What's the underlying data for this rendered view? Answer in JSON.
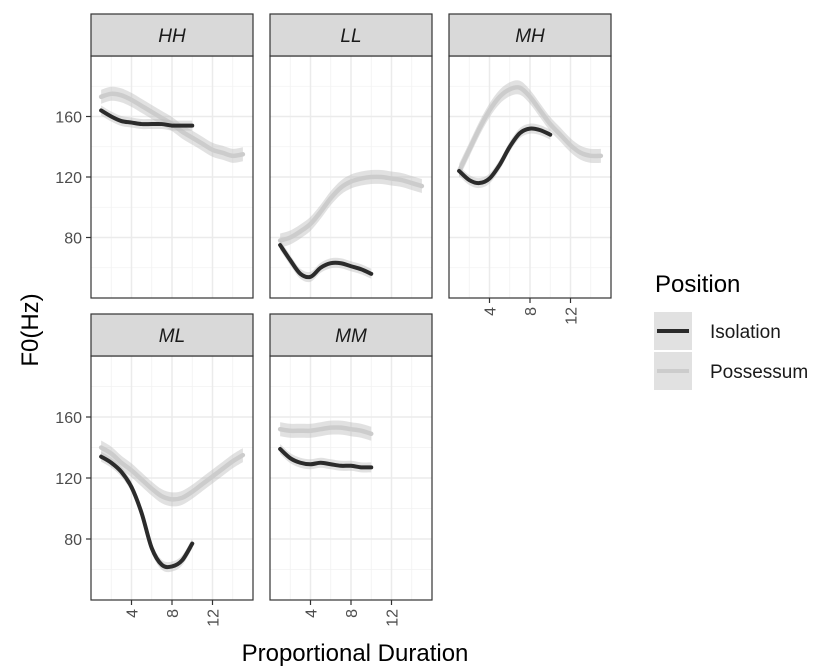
{
  "chart_data": {
    "type": "line",
    "xlabel": "Proportional Duration",
    "ylabel": "F0(Hz)",
    "xlim": [
      0,
      16
    ],
    "ylim": [
      40,
      200
    ],
    "x_ticks": [
      4,
      8,
      12
    ],
    "y_ticks": [
      80,
      120,
      160
    ],
    "grid": true,
    "legend": {
      "title": "Position",
      "placement": "right",
      "entries": [
        {
          "label": "Isolation",
          "color": "#2b2b2b"
        },
        {
          "label": "Possessum",
          "color": "#cccccc"
        }
      ]
    },
    "colors": {
      "Isolation": "#2b2b2b",
      "Possessum": "#cccccc",
      "ribbon": "#bdbdbd",
      "strip": "#d9d9d9"
    },
    "panels": [
      {
        "title": "HH",
        "series": [
          {
            "name": "Isolation",
            "x": [
              1,
              2,
              3,
              4,
              5,
              6,
              7,
              8,
              9,
              10
            ],
            "y": [
              164,
              160,
              157,
              156,
              155,
              155,
              155,
              154,
              154,
              154
            ]
          },
          {
            "name": "Possessum",
            "x": [
              1,
              2,
              3,
              4,
              5,
              6,
              7,
              8,
              9,
              10,
              11,
              12,
              13,
              14,
              15
            ],
            "y": [
              173,
              175,
              174,
              171,
              167,
              163,
              159,
              155,
              150,
              146,
              142,
              138,
              136,
              134,
              135
            ]
          }
        ]
      },
      {
        "title": "LL",
        "series": [
          {
            "name": "Isolation",
            "x": [
              1,
              2,
              3,
              4,
              5,
              6,
              7,
              8,
              9,
              10
            ],
            "y": [
              75,
              65,
              56,
              54,
              60,
              63,
              63,
              61,
              59,
              56
            ]
          },
          {
            "name": "Possessum",
            "x": [
              1,
              2,
              3,
              4,
              5,
              6,
              7,
              8,
              9,
              10,
              11,
              12,
              13,
              14,
              15
            ],
            "y": [
              78,
              80,
              84,
              89,
              97,
              106,
              113,
              117,
              119,
              120,
              120,
              119,
              118,
              116,
              114
            ]
          }
        ]
      },
      {
        "title": "MH",
        "series": [
          {
            "name": "Isolation",
            "x": [
              1,
              2,
              3,
              4,
              5,
              6,
              7,
              8,
              9,
              10
            ],
            "y": [
              124,
              118,
              116,
              119,
              128,
              140,
              149,
              152,
              151,
              148
            ]
          },
          {
            "name": "Possessum",
            "x": [
              1,
              2,
              3,
              4,
              5,
              6,
              7,
              8,
              9,
              10,
              11,
              12,
              13,
              14,
              15
            ],
            "y": [
              124,
              138,
              152,
              164,
              173,
              178,
              179,
              173,
              164,
              155,
              148,
              141,
              136,
              134,
              134
            ]
          }
        ]
      },
      {
        "title": "ML",
        "series": [
          {
            "name": "Isolation",
            "x": [
              1,
              2,
              3,
              4,
              5,
              6,
              7,
              8,
              9,
              10
            ],
            "y": [
              134,
              130,
              124,
              114,
              97,
              74,
              63,
              62,
              66,
              77
            ]
          },
          {
            "name": "Possessum",
            "x": [
              1,
              2,
              3,
              4,
              5,
              6,
              7,
              8,
              9,
              10,
              11,
              12,
              13,
              14,
              15
            ],
            "y": [
              140,
              136,
              130,
              125,
              119,
              113,
              108,
              106,
              107,
              111,
              116,
              121,
              126,
              131,
              135
            ]
          }
        ]
      },
      {
        "title": "MM",
        "series": [
          {
            "name": "Isolation",
            "x": [
              1,
              2,
              3,
              4,
              5,
              6,
              7,
              8,
              9,
              10
            ],
            "y": [
              139,
              133,
              130,
              129,
              130,
              129,
              128,
              128,
              127,
              127
            ]
          },
          {
            "name": "Possessum",
            "x": [
              1,
              2,
              3,
              4,
              5,
              6,
              7,
              8,
              9,
              10
            ],
            "y": [
              152,
              151,
              151,
              151,
              152,
              153,
              153,
              152,
              151,
              149
            ]
          }
        ]
      }
    ]
  }
}
